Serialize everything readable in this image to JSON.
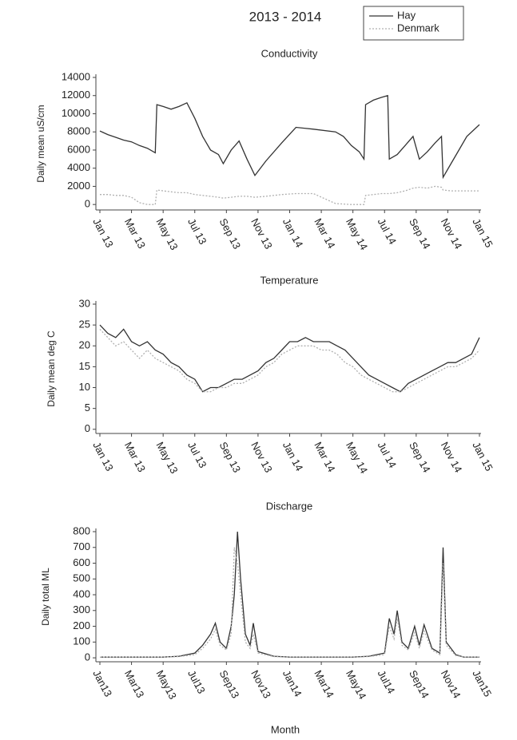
{
  "chart_data": [
    {
      "type": "line",
      "title": "2013 - 2014",
      "subtitle": "Conductivity",
      "ylabel": "Daily mean uS/cm",
      "legend": "top-right",
      "x": [
        0,
        0.5,
        1,
        1.5,
        2,
        2.5,
        3,
        3.5,
        3.6,
        4,
        4.5,
        5,
        5.5,
        6,
        6.5,
        7,
        7.5,
        7.8,
        8.3,
        8.8,
        9.3,
        9.8,
        10.5,
        11.5,
        12.4,
        13.5,
        14.9,
        15.4,
        15.9,
        16.4,
        16.7,
        16.8,
        17.3,
        17.8,
        18.2,
        18.3,
        18.8,
        19.3,
        19.8,
        20.2,
        20.7,
        21.2,
        21.6,
        21.7,
        22.2,
        22.7,
        23.2,
        24
      ],
      "xlim": [
        0,
        24
      ],
      "xticks": [
        {
          "value": 0,
          "label": "Jan 13"
        },
        {
          "value": 2,
          "label": "Mar 13"
        },
        {
          "value": 4,
          "label": "May 13"
        },
        {
          "value": 6,
          "label": "Jul 13"
        },
        {
          "value": 8,
          "label": "Sep 13"
        },
        {
          "value": 10,
          "label": "Nov 13"
        },
        {
          "value": 12,
          "label": "Jan 14"
        },
        {
          "value": 14,
          "label": "Mar 14"
        },
        {
          "value": 16,
          "label": "May 14"
        },
        {
          "value": 18,
          "label": "Jul 14"
        },
        {
          "value": 20,
          "label": "Sep 14"
        },
        {
          "value": 22,
          "label": "Nov 14"
        },
        {
          "value": 24,
          "label": "Jan 15"
        }
      ],
      "ylim": [
        -600,
        14000
      ],
      "yticks": [
        0,
        2000,
        4000,
        6000,
        8000,
        10000,
        12000,
        14000
      ],
      "series": [
        {
          "name": "Hay",
          "color": "#333333",
          "style": "solid",
          "values": [
            8100,
            7700,
            7400,
            7100,
            6900,
            6500,
            6200,
            5700,
            11000,
            10800,
            10500,
            10800,
            11200,
            9500,
            7500,
            6000,
            5500,
            4500,
            6000,
            7000,
            5000,
            3200,
            4800,
            6800,
            8500,
            8300,
            8000,
            7500,
            6500,
            5800,
            5000,
            11000,
            11500,
            11800,
            12000,
            5000,
            5500,
            6500,
            7500,
            5000,
            5800,
            6800,
            7500,
            3000,
            4500,
            6000,
            7500,
            8800
          ]
        },
        {
          "name": "Denmark",
          "color": "#b0b0b0",
          "style": "dotted",
          "values": [
            1100,
            1100,
            1000,
            1000,
            800,
            200,
            0,
            0,
            1600,
            1500,
            1400,
            1300,
            1300,
            1100,
            1000,
            900,
            800,
            700,
            800,
            900,
            900,
            800,
            900,
            1100,
            1200,
            1200,
            100,
            50,
            0,
            0,
            0,
            1000,
            1100,
            1200,
            1200,
            1200,
            1300,
            1500,
            1800,
            1900,
            1800,
            2000,
            1900,
            1600,
            1500,
            1500,
            1500,
            1500
          ]
        }
      ]
    },
    {
      "type": "line",
      "subtitle": "Temperature",
      "ylabel": "Daily mean deg C",
      "x": [
        0,
        0.5,
        1,
        1.5,
        2,
        2.5,
        3,
        3.5,
        4,
        4.5,
        5,
        5.5,
        6,
        6.5,
        7,
        7.5,
        8,
        8.5,
        9,
        9.5,
        10,
        10.5,
        11,
        11.5,
        12,
        12.5,
        13,
        13.5,
        14,
        14.5,
        15,
        15.5,
        16,
        16.5,
        17,
        17.5,
        18,
        18.5,
        19,
        19.5,
        20,
        20.5,
        21,
        21.5,
        22,
        22.5,
        23,
        23.5,
        24
      ],
      "xlim": [
        0,
        24
      ],
      "xticks": [
        {
          "value": 0,
          "label": "Jan 13"
        },
        {
          "value": 2,
          "label": "Mar 13"
        },
        {
          "value": 4,
          "label": "May 13"
        },
        {
          "value": 6,
          "label": "Jul 13"
        },
        {
          "value": 8,
          "label": "Sep 13"
        },
        {
          "value": 10,
          "label": "Nov 13"
        },
        {
          "value": 12,
          "label": "Jan 14"
        },
        {
          "value": 14,
          "label": "Mar 14"
        },
        {
          "value": 16,
          "label": "May 14"
        },
        {
          "value": 18,
          "label": "Jul 14"
        },
        {
          "value": 20,
          "label": "Sep 14"
        },
        {
          "value": 22,
          "label": "Nov 14"
        },
        {
          "value": 24,
          "label": "Jan 15"
        }
      ],
      "ylim": [
        -1,
        30
      ],
      "yticks": [
        0,
        5,
        10,
        15,
        20,
        25,
        30
      ],
      "series": [
        {
          "color": "#333333",
          "style": "solid",
          "values": [
            25,
            23,
            22,
            24,
            21,
            20,
            21,
            19,
            18,
            16,
            15,
            13,
            12,
            9,
            10,
            10,
            11,
            12,
            12,
            13,
            14,
            16,
            17,
            19,
            21,
            21,
            22,
            21,
            21,
            21,
            20,
            19,
            17,
            15,
            13,
            12,
            11,
            10,
            9,
            11,
            12,
            13,
            14,
            15,
            16,
            16,
            17,
            18,
            22
          ]
        },
        {
          "color": "#b0b0b0",
          "style": "dotted",
          "values": [
            24,
            22,
            20,
            21,
            19,
            17,
            19,
            17,
            16,
            15,
            14,
            12,
            11,
            9,
            9,
            10,
            10,
            11,
            11,
            12,
            13,
            15,
            16,
            18,
            19,
            20,
            20,
            20,
            19,
            19,
            18,
            16,
            15,
            13,
            12,
            11,
            10,
            9,
            9,
            10,
            11,
            12,
            13,
            14,
            15,
            15,
            16,
            17,
            19
          ]
        }
      ]
    },
    {
      "type": "line",
      "subtitle": "Discharge",
      "ylabel": "Daily total ML",
      "xlabel": "Month",
      "x": [
        0,
        2,
        4,
        5,
        6,
        6.5,
        7,
        7.3,
        7.6,
        8,
        8.3,
        8.5,
        8.7,
        8.9,
        9.2,
        9.5,
        9.7,
        10,
        11,
        12,
        14,
        16,
        17,
        18,
        18.3,
        18.6,
        18.8,
        19.1,
        19.5,
        19.9,
        20.2,
        20.5,
        21,
        21.5,
        21.7,
        21.9,
        22.5,
        23,
        24
      ],
      "xlim": [
        0,
        24
      ],
      "xticks": [
        {
          "value": 0,
          "label": "Jan13"
        },
        {
          "value": 2,
          "label": "Mar13"
        },
        {
          "value": 4,
          "label": "May13"
        },
        {
          "value": 6,
          "label": "Jul13"
        },
        {
          "value": 8,
          "label": "Sep13"
        },
        {
          "value": 10,
          "label": "Nov13"
        },
        {
          "value": 12,
          "label": "Jan14"
        },
        {
          "value": 14,
          "label": "Mar14"
        },
        {
          "value": 16,
          "label": "May14"
        },
        {
          "value": 18,
          "label": "Jul14"
        },
        {
          "value": 20,
          "label": "Sep14"
        },
        {
          "value": 22,
          "label": "Nov14"
        },
        {
          "value": 24,
          "label": "Jan15"
        }
      ],
      "ylim": [
        -25,
        800
      ],
      "yticks": [
        0,
        100,
        200,
        300,
        400,
        500,
        600,
        700,
        800
      ],
      "series": [
        {
          "color": "#333333",
          "style": "solid",
          "values": [
            5,
            5,
            5,
            10,
            30,
            80,
            150,
            220,
            100,
            60,
            200,
            400,
            800,
            500,
            150,
            80,
            220,
            40,
            10,
            5,
            5,
            5,
            10,
            30,
            250,
            150,
            300,
            100,
            60,
            200,
            80,
            210,
            60,
            30,
            700,
            100,
            20,
            5,
            5
          ]
        },
        {
          "color": "#b0b0b0",
          "style": "dotted",
          "values": [
            5,
            5,
            5,
            8,
            20,
            60,
            120,
            180,
            80,
            50,
            150,
            700,
            600,
            400,
            100,
            60,
            150,
            30,
            8,
            5,
            5,
            5,
            8,
            20,
            200,
            120,
            250,
            80,
            50,
            160,
            60,
            170,
            50,
            20,
            600,
            80,
            15,
            5,
            5
          ]
        }
      ]
    }
  ]
}
